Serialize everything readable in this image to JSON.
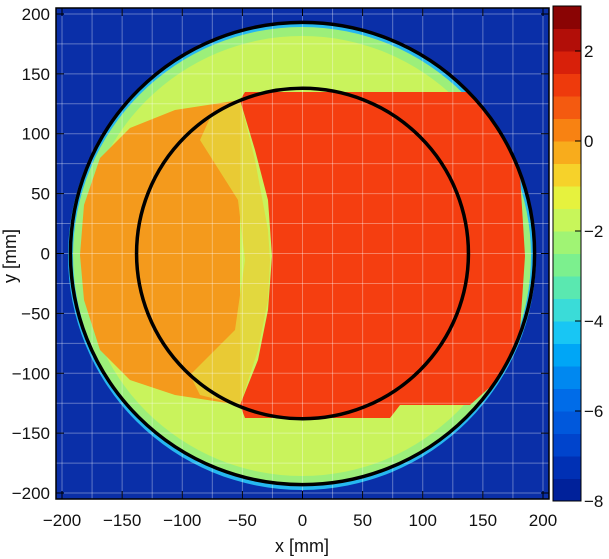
{
  "chart_data": {
    "type": "heatmap",
    "title": "",
    "xlabel": "x [mm]",
    "ylabel": "y [mm]",
    "xlim": [
      -205,
      205
    ],
    "ylim": [
      -205,
      205
    ],
    "x_ticks": [
      -200,
      -150,
      -100,
      -50,
      0,
      50,
      100,
      150,
      200
    ],
    "y_ticks": [
      -200,
      -150,
      -100,
      -50,
      0,
      50,
      100,
      150,
      200
    ],
    "grid": true,
    "colorbar": {
      "range": [
        -8,
        3
      ],
      "ticks": [
        2,
        0,
        -2,
        -4,
        -6,
        -8
      ],
      "placement": "right",
      "colors": [
        "#00219a",
        "#0030b4",
        "#0044cc",
        "#0058dc",
        "#006ce8",
        "#0088f0",
        "#00a6f6",
        "#18c6f4",
        "#3adcd8",
        "#5ae8b0",
        "#7cf08e",
        "#a0f474",
        "#c8f65a",
        "#e6f23e",
        "#f6d22a",
        "#f8ac1c",
        "#f88212",
        "#f45a10",
        "#ee3a0c",
        "#d8200a",
        "#b20e08",
        "#8a0404"
      ]
    },
    "regions": [
      {
        "name": "outer-disk",
        "shape": "circle",
        "radius": 195,
        "value": -1.3
      },
      {
        "name": "inner-left",
        "shape": "region",
        "x_range": [
          -195,
          -40
        ],
        "value": 0.3
      },
      {
        "name": "inner-right",
        "shape": "region",
        "x_range": [
          -40,
          195
        ],
        "value": 1.0
      }
    ],
    "background_value": -7.5,
    "overlay_circles": [
      {
        "cx": 0,
        "cy": 0,
        "r": 193
      },
      {
        "cx": 0,
        "cy": 0,
        "r": 138
      }
    ]
  }
}
